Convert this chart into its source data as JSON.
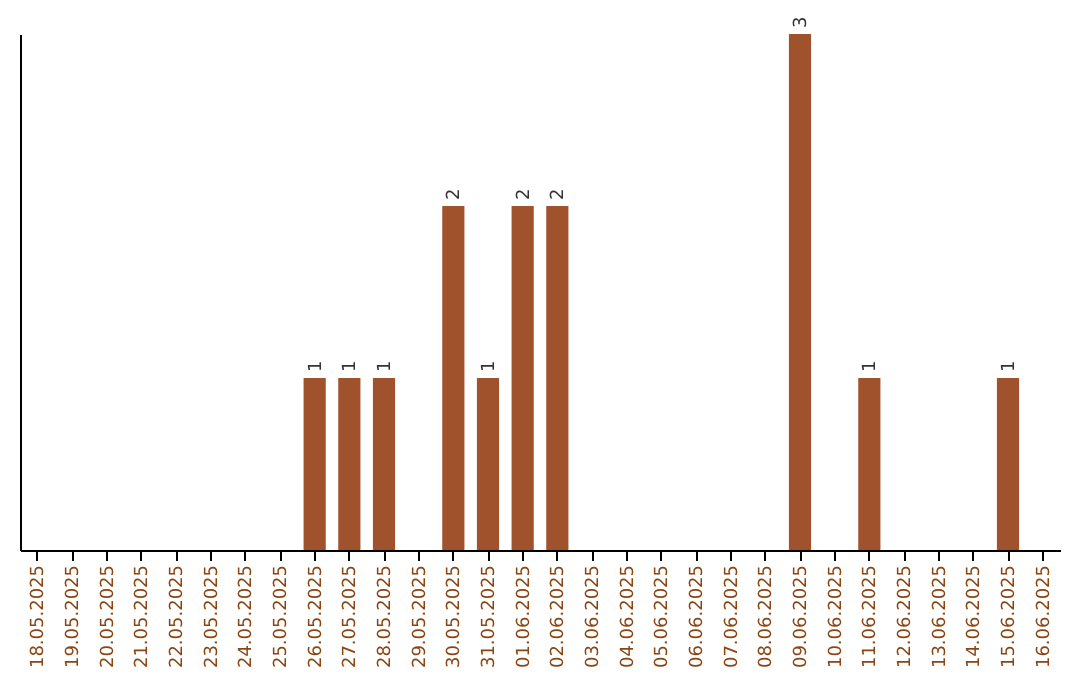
{
  "chart_data": {
    "type": "bar",
    "categories": [
      "18.05.2025",
      "19.05.2025",
      "20.05.2025",
      "21.05.2025",
      "22.05.2025",
      "23.05.2025",
      "24.05.2025",
      "25.05.2025",
      "26.05.2025",
      "27.05.2025",
      "28.05.2025",
      "29.05.2025",
      "30.05.2025",
      "31.05.2025",
      "01.06.2025",
      "02.06.2025",
      "03.06.2025",
      "04.06.2025",
      "05.06.2025",
      "06.06.2025",
      "07.06.2025",
      "08.06.2025",
      "09.06.2025",
      "10.06.2025",
      "11.06.2025",
      "12.06.2025",
      "13.06.2025",
      "14.06.2025",
      "15.06.2025",
      "16.06.2025"
    ],
    "values": [
      0,
      0,
      0,
      0,
      0,
      0,
      0,
      0,
      1,
      1,
      1,
      0,
      2,
      1,
      2,
      2,
      0,
      0,
      0,
      0,
      0,
      0,
      3,
      0,
      1,
      0,
      0,
      0,
      1,
      0
    ],
    "value_labels": [
      null,
      null,
      null,
      null,
      null,
      null,
      null,
      null,
      "1",
      "1",
      "1",
      null,
      "2",
      "1",
      "2",
      "2",
      null,
      null,
      null,
      null,
      null,
      null,
      "3",
      null,
      "1",
      null,
      null,
      null,
      "1",
      null
    ],
    "color": "#a0522d",
    "tick_labels": "x"
  }
}
